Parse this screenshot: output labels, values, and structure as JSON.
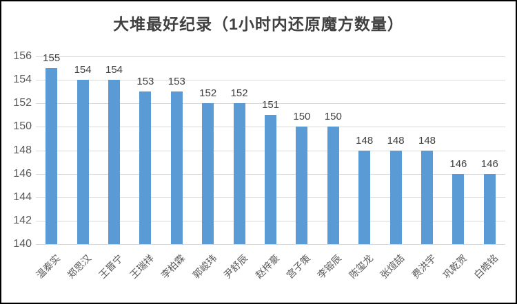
{
  "chart_data": {
    "type": "bar",
    "title": "大堆最好纪录（1小时内还原魔方数量）",
    "categories": [
      "温泰实",
      "郑思汉",
      "王晋宁",
      "王瑞祥",
      "李柏霖",
      "郭峻玮",
      "尹舒辰",
      "赵梓豪",
      "宫子策",
      "李镕辰",
      "陈玺龙",
      "张煊喆",
      "费洪宇",
      "巩乾贺",
      "白皓铭"
    ],
    "values": [
      155,
      154,
      154,
      153,
      153,
      152,
      152,
      151,
      150,
      150,
      148,
      148,
      148,
      146,
      146
    ],
    "xlabel": "",
    "ylabel": "",
    "ylim": [
      140,
      156
    ],
    "yticks": [
      140,
      142,
      144,
      146,
      148,
      150,
      152,
      154,
      156
    ],
    "grid": true,
    "legend": false,
    "data_labels": true,
    "colors": {
      "bar": "#5b9bd5",
      "gridline": "#d9d9d9",
      "title_text": "#404040",
      "data_label_text": "#404040",
      "axis_text": "#595959",
      "background": "#ffffff",
      "frame_border": "#000000"
    }
  }
}
